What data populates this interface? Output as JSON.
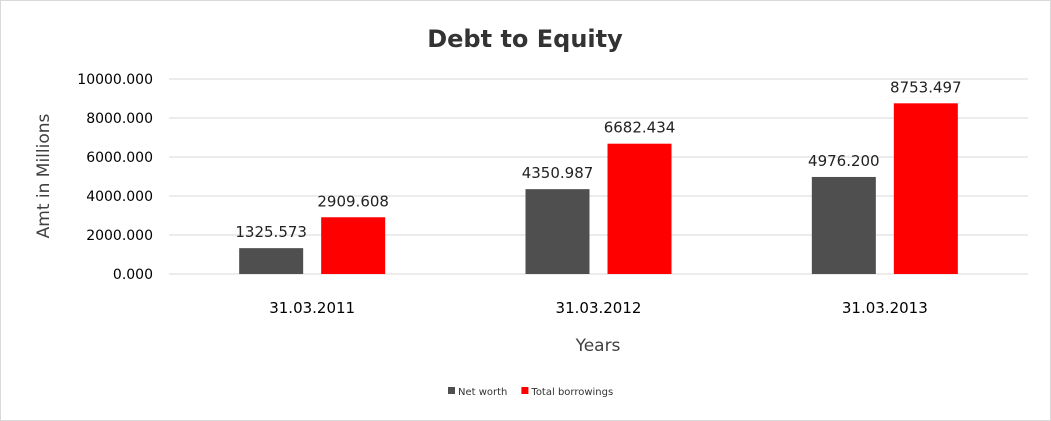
{
  "chart_data": {
    "type": "bar",
    "title": "Debt to Equity",
    "xlabel": "Years",
    "ylabel": "Amt in Millions",
    "categories": [
      "31.03.2011",
      "31.03.2012",
      "31.03.2013"
    ],
    "series": [
      {
        "name": "Net worth",
        "color": "#4f4f4f",
        "values": [
          1325.573,
          4350.987,
          4976.2
        ],
        "labels": [
          "1325.573",
          "4350.987",
          "4976.200"
        ]
      },
      {
        "name": "Total borrowings",
        "color": "#ff0000",
        "values": [
          2909.608,
          6682.434,
          8753.497
        ],
        "labels": [
          "2909.608",
          "6682.434",
          "8753.497"
        ]
      }
    ],
    "ylim": [
      0,
      10000
    ],
    "yticks": [
      0,
      2000,
      4000,
      6000,
      8000,
      10000
    ],
    "ytick_labels": [
      "0.000",
      "2000.000",
      "4000.000",
      "6000.000",
      "8000.000",
      "10000.000"
    ],
    "grid": true,
    "legend_position": "bottom"
  }
}
